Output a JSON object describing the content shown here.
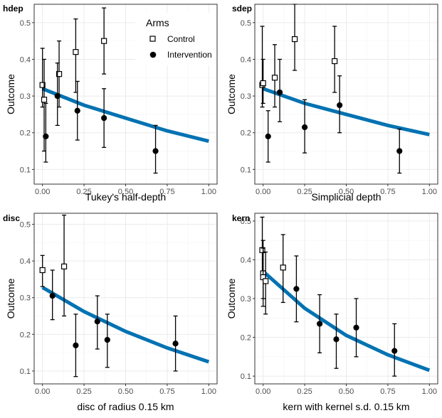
{
  "legend": {
    "title": "Arms",
    "items": [
      {
        "label": "Control",
        "shape": "open-square"
      },
      {
        "label": "Intervention",
        "shape": "filled-circle"
      }
    ],
    "placement": "top-right of first panel"
  },
  "colors": {
    "fit_line": "#0072b2",
    "panel_border": "#333333",
    "grid": "#ebebeb"
  },
  "chart_data": [
    {
      "type": "scatter",
      "title": "hdep",
      "xlabel": "Tukey's half-depth",
      "ylabel": "Outcome",
      "xlim": [
        -0.05,
        1.05
      ],
      "ylim": [
        0.06,
        0.55
      ],
      "xticks": [
        "0.00",
        "0.25",
        "0.50",
        "0.75",
        "1.00"
      ],
      "yticks": [
        "0.1",
        "0.2",
        "0.3",
        "0.4",
        "0.5"
      ],
      "xtick_values": [
        0,
        0.25,
        0.5,
        0.75,
        1
      ],
      "ytick_values": [
        0.1,
        0.2,
        0.3,
        0.4,
        0.5
      ],
      "grid": true,
      "series": [
        {
          "name": "Control",
          "points": [
            {
              "x": 0.0,
              "y": 0.33,
              "lo": 0.27,
              "hi": 0.43
            },
            {
              "x": 0.01,
              "y": 0.29,
              "lo": 0.15,
              "hi": 0.4
            },
            {
              "x": 0.1,
              "y": 0.36,
              "lo": 0.27,
              "hi": 0.45
            },
            {
              "x": 0.2,
              "y": 0.42,
              "lo": 0.31,
              "hi": 0.51
            },
            {
              "x": 0.37,
              "y": 0.45,
              "lo": 0.36,
              "hi": 0.54
            }
          ]
        },
        {
          "name": "Intervention",
          "points": [
            {
              "x": 0.02,
              "y": 0.19,
              "lo": 0.12,
              "hi": 0.28
            },
            {
              "x": 0.09,
              "y": 0.3,
              "lo": 0.22,
              "hi": 0.39
            },
            {
              "x": 0.21,
              "y": 0.26,
              "lo": 0.18,
              "hi": 0.34
            },
            {
              "x": 0.37,
              "y": 0.24,
              "lo": 0.16,
              "hi": 0.32
            },
            {
              "x": 0.68,
              "y": 0.15,
              "lo": 0.09,
              "hi": 0.22
            }
          ]
        }
      ],
      "fit": {
        "x": [
          0,
          0.25,
          0.5,
          0.75,
          1.0
        ],
        "y": [
          0.32,
          0.275,
          0.24,
          0.205,
          0.177
        ]
      }
    },
    {
      "type": "scatter",
      "title": "sdep",
      "xlabel": "Simplicial depth",
      "ylabel": "Outcome",
      "xlim": [
        -0.05,
        1.05
      ],
      "ylim": [
        0.06,
        0.55
      ],
      "xticks": [
        "0.00",
        "0.25",
        "0.50",
        "0.75",
        "1.00"
      ],
      "yticks": [
        "0.1",
        "0.2",
        "0.3",
        "0.4",
        "0.5"
      ],
      "xtick_values": [
        0,
        0.25,
        0.5,
        0.75,
        1
      ],
      "ytick_values": [
        0.1,
        0.2,
        0.3,
        0.4,
        0.5
      ],
      "grid": true,
      "series": [
        {
          "name": "Control",
          "points": [
            {
              "x": -0.005,
              "y": 0.33,
              "lo": 0.27,
              "hi": 0.49
            },
            {
              "x": 0.0,
              "y": 0.335,
              "lo": 0.28,
              "hi": 0.4
            },
            {
              "x": 0.07,
              "y": 0.35,
              "lo": 0.27,
              "hi": 0.44
            },
            {
              "x": 0.19,
              "y": 0.455,
              "lo": 0.37,
              "hi": 0.55
            },
            {
              "x": 0.43,
              "y": 0.395,
              "lo": 0.31,
              "hi": 0.49
            }
          ]
        },
        {
          "name": "Intervention",
          "points": [
            {
              "x": 0.03,
              "y": 0.19,
              "lo": 0.12,
              "hi": 0.26
            },
            {
              "x": 0.1,
              "y": 0.31,
              "lo": 0.23,
              "hi": 0.4
            },
            {
              "x": 0.25,
              "y": 0.215,
              "lo": 0.145,
              "hi": 0.29
            },
            {
              "x": 0.46,
              "y": 0.275,
              "lo": 0.2,
              "hi": 0.355
            },
            {
              "x": 0.82,
              "y": 0.15,
              "lo": 0.09,
              "hi": 0.21
            }
          ]
        }
      ],
      "fit": {
        "x": [
          0,
          0.25,
          0.5,
          0.75,
          1.0
        ],
        "y": [
          0.32,
          0.28,
          0.25,
          0.22,
          0.195
        ]
      }
    },
    {
      "type": "scatter",
      "title": "disc",
      "xlabel": "disc of radius 0.15 km",
      "ylabel": "Outcome",
      "xlim": [
        -0.05,
        1.05
      ],
      "ylim": [
        0.065,
        0.53
      ],
      "xticks": [
        "0.00",
        "0.25",
        "0.50",
        "0.75",
        "1.00"
      ],
      "yticks": [
        "0.1",
        "0.2",
        "0.3",
        "0.4",
        "0.5"
      ],
      "xtick_values": [
        0,
        0.25,
        0.5,
        0.75,
        1
      ],
      "ytick_values": [
        0.1,
        0.2,
        0.3,
        0.4,
        0.5
      ],
      "grid": true,
      "series": [
        {
          "name": "Control",
          "points": [
            {
              "x": 0.0,
              "y": 0.375,
              "lo": 0.33,
              "hi": 0.415
            },
            {
              "x": 0.13,
              "y": 0.385,
              "lo": 0.25,
              "hi": 0.525
            }
          ]
        },
        {
          "name": "Intervention",
          "points": [
            {
              "x": 0.06,
              "y": 0.305,
              "lo": 0.24,
              "hi": 0.375
            },
            {
              "x": 0.2,
              "y": 0.17,
              "lo": 0.085,
              "hi": 0.255
            },
            {
              "x": 0.33,
              "y": 0.235,
              "lo": 0.16,
              "hi": 0.305
            },
            {
              "x": 0.39,
              "y": 0.185,
              "lo": 0.11,
              "hi": 0.255
            },
            {
              "x": 0.8,
              "y": 0.175,
              "lo": 0.1,
              "hi": 0.25
            }
          ]
        }
      ],
      "fit": {
        "x": [
          0,
          0.25,
          0.5,
          0.75,
          1.0
        ],
        "y": [
          0.328,
          0.262,
          0.208,
          0.163,
          0.125
        ]
      }
    },
    {
      "type": "scatter",
      "title": "kern",
      "xlabel": "kern with kernel s.d. 0.15 km",
      "ylabel": "Outcome",
      "xlim": [
        -0.05,
        1.05
      ],
      "ylim": [
        0.08,
        0.52
      ],
      "xticks": [
        "0.00",
        "0.25",
        "0.50",
        "0.75",
        "1.00"
      ],
      "yticks": [
        "0.1",
        "0.2",
        "0.3",
        "0.4",
        "0.5"
      ],
      "xtick_values": [
        0,
        0.25,
        0.5,
        0.75,
        1
      ],
      "ytick_values": [
        0.1,
        0.2,
        0.3,
        0.4,
        0.5
      ],
      "grid": true,
      "series": [
        {
          "name": "Control",
          "points": [
            {
              "x": -0.005,
              "y": 0.425,
              "lo": 0.36,
              "hi": 0.51
            },
            {
              "x": 0.0,
              "y": 0.365,
              "lo": 0.3,
              "hi": 0.45
            },
            {
              "x": 0.0,
              "y": 0.355,
              "lo": 0.28,
              "hi": 0.43
            },
            {
              "x": 0.015,
              "y": 0.345,
              "lo": 0.26,
              "hi": 0.42
            },
            {
              "x": 0.12,
              "y": 0.38,
              "lo": 0.29,
              "hi": 0.465
            }
          ]
        },
        {
          "name": "Intervention",
          "points": [
            {
              "x": 0.2,
              "y": 0.325,
              "lo": 0.24,
              "hi": 0.41
            },
            {
              "x": 0.34,
              "y": 0.235,
              "lo": 0.16,
              "hi": 0.31
            },
            {
              "x": 0.44,
              "y": 0.195,
              "lo": 0.12,
              "hi": 0.26
            },
            {
              "x": 0.56,
              "y": 0.225,
              "lo": 0.15,
              "hi": 0.3
            },
            {
              "x": 0.79,
              "y": 0.165,
              "lo": 0.1,
              "hi": 0.235
            }
          ]
        }
      ],
      "fit": {
        "x": [
          0,
          0.25,
          0.5,
          0.75,
          1.0
        ],
        "y": [
          0.37,
          0.275,
          0.205,
          0.155,
          0.115
        ]
      }
    }
  ]
}
